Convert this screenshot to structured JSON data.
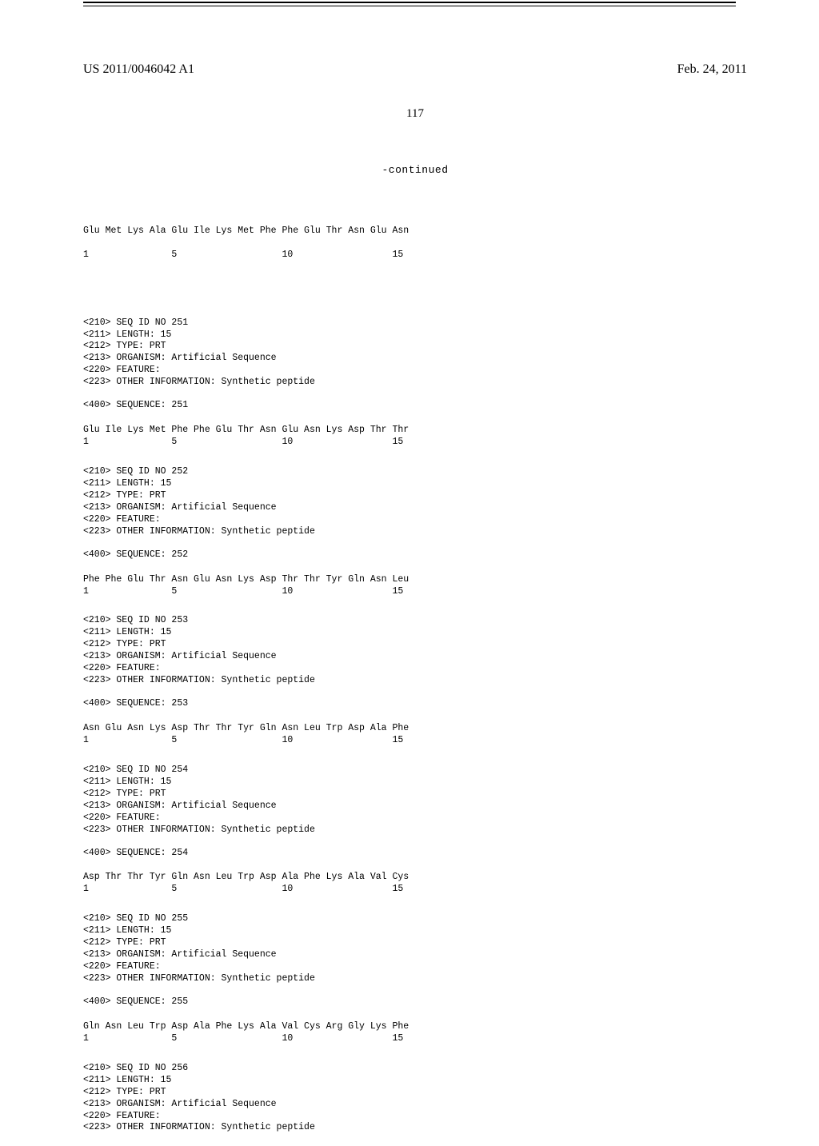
{
  "header": {
    "pub_number": "US 2011/0046042 A1",
    "pub_date": "Feb. 24, 2011",
    "page_number": "117",
    "continued_label": "-continued"
  },
  "initial_sequence": {
    "residues": "Glu Met Lys Ala Glu Ile Lys Met Phe Phe Glu Thr Asn Glu Asn",
    "numbers": "1               5                   10                  15"
  },
  "entries": [
    {
      "seq_id": "<210> SEQ ID NO 251",
      "length": "<211> LENGTH: 15",
      "type": "<212> TYPE: PRT",
      "organism": "<213> ORGANISM: Artificial Sequence",
      "feature": "<220> FEATURE:",
      "other_info": "<223> OTHER INFORMATION: Synthetic peptide",
      "sequence_label": "<400> SEQUENCE: 251",
      "residues": "Glu Ile Lys Met Phe Phe Glu Thr Asn Glu Asn Lys Asp Thr Thr",
      "numbers": "1               5                   10                  15"
    },
    {
      "seq_id": "<210> SEQ ID NO 252",
      "length": "<211> LENGTH: 15",
      "type": "<212> TYPE: PRT",
      "organism": "<213> ORGANISM: Artificial Sequence",
      "feature": "<220> FEATURE:",
      "other_info": "<223> OTHER INFORMATION: Synthetic peptide",
      "sequence_label": "<400> SEQUENCE: 252",
      "residues": "Phe Phe Glu Thr Asn Glu Asn Lys Asp Thr Thr Tyr Gln Asn Leu",
      "numbers": "1               5                   10                  15"
    },
    {
      "seq_id": "<210> SEQ ID NO 253",
      "length": "<211> LENGTH: 15",
      "type": "<212> TYPE: PRT",
      "organism": "<213> ORGANISM: Artificial Sequence",
      "feature": "<220> FEATURE:",
      "other_info": "<223> OTHER INFORMATION: Synthetic peptide",
      "sequence_label": "<400> SEQUENCE: 253",
      "residues": "Asn Glu Asn Lys Asp Thr Thr Tyr Gln Asn Leu Trp Asp Ala Phe",
      "numbers": "1               5                   10                  15"
    },
    {
      "seq_id": "<210> SEQ ID NO 254",
      "length": "<211> LENGTH: 15",
      "type": "<212> TYPE: PRT",
      "organism": "<213> ORGANISM: Artificial Sequence",
      "feature": "<220> FEATURE:",
      "other_info": "<223> OTHER INFORMATION: Synthetic peptide",
      "sequence_label": "<400> SEQUENCE: 254",
      "residues": "Asp Thr Thr Tyr Gln Asn Leu Trp Asp Ala Phe Lys Ala Val Cys",
      "numbers": "1               5                   10                  15"
    },
    {
      "seq_id": "<210> SEQ ID NO 255",
      "length": "<211> LENGTH: 15",
      "type": "<212> TYPE: PRT",
      "organism": "<213> ORGANISM: Artificial Sequence",
      "feature": "<220> FEATURE:",
      "other_info": "<223> OTHER INFORMATION: Synthetic peptide",
      "sequence_label": "<400> SEQUENCE: 255",
      "residues": "Gln Asn Leu Trp Asp Ala Phe Lys Ala Val Cys Arg Gly Lys Phe",
      "numbers": "1               5                   10                  15"
    },
    {
      "seq_id": "<210> SEQ ID NO 256",
      "length": "<211> LENGTH: 15",
      "type": "<212> TYPE: PRT",
      "organism": "<213> ORGANISM: Artificial Sequence",
      "feature": "<220> FEATURE:",
      "other_info": "<223> OTHER INFORMATION: Synthetic peptide",
      "sequence_label": "",
      "residues": "",
      "numbers": ""
    }
  ]
}
